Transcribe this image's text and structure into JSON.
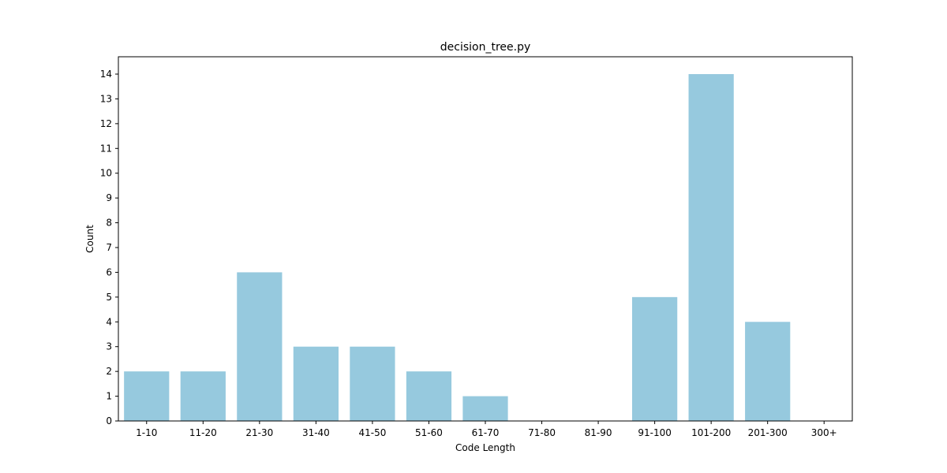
{
  "chart_data": {
    "type": "bar",
    "title": "decision_tree.py",
    "xlabel": "Code Length",
    "ylabel": "Count",
    "categories": [
      "1-10",
      "11-20",
      "21-30",
      "31-40",
      "41-50",
      "51-60",
      "61-70",
      "71-80",
      "81-90",
      "91-100",
      "101-200",
      "201-300",
      "300+"
    ],
    "values": [
      2,
      2,
      6,
      3,
      3,
      2,
      1,
      0,
      0,
      5,
      14,
      4,
      0
    ],
    "ylim": [
      0,
      14.7
    ],
    "yticks": [
      0,
      1,
      2,
      3,
      4,
      5,
      6,
      7,
      8,
      9,
      10,
      11,
      12,
      13,
      14
    ],
    "bar_color": "#96c9de",
    "grid": false,
    "legend": "none"
  }
}
